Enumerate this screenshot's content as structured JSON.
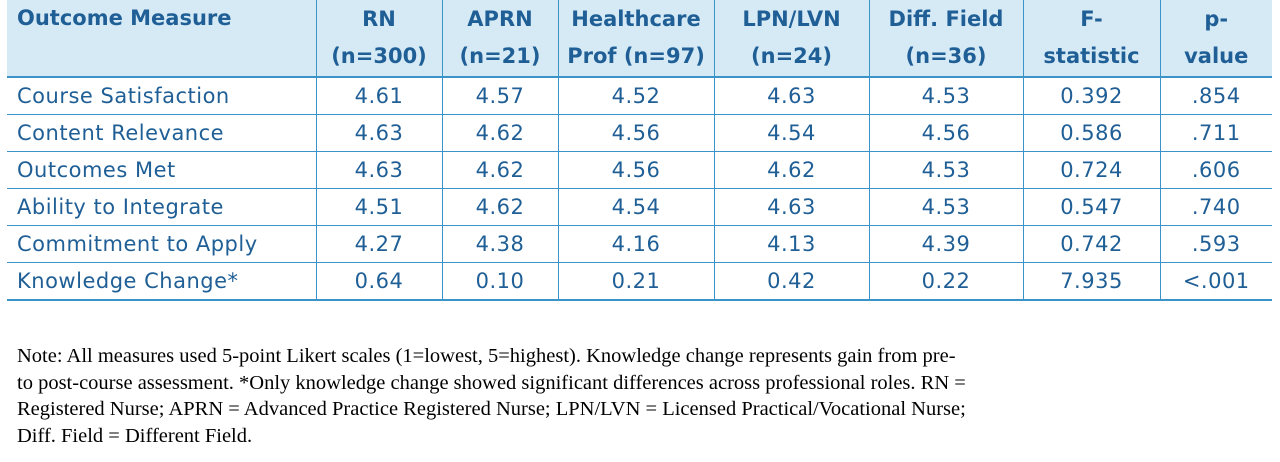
{
  "table": {
    "headers": [
      [
        "Outcome Measure"
      ],
      [
        "RN",
        "(n=300)"
      ],
      [
        "APRN",
        "(n=21)"
      ],
      [
        "Healthcare",
        "Prof (n=97)"
      ],
      [
        "LPN/LVN",
        "(n=24)"
      ],
      [
        "Diff. Field",
        "(n=36)"
      ],
      [
        "F-",
        "statistic"
      ],
      [
        "p-",
        "value"
      ]
    ],
    "rows": [
      [
        "Course Satisfaction",
        "4.61",
        "4.57",
        "4.52",
        "4.63",
        "4.53",
        "0.392",
        ".854"
      ],
      [
        "Content Relevance",
        "4.63",
        "4.62",
        "4.56",
        "4.54",
        "4.56",
        "0.586",
        ".711"
      ],
      [
        "Outcomes Met",
        "4.63",
        "4.62",
        "4.56",
        "4.62",
        "4.53",
        "0.724",
        ".606"
      ],
      [
        "Ability to Integrate",
        "4.51",
        "4.62",
        "4.54",
        "4.63",
        "4.53",
        "0.547",
        ".740"
      ],
      [
        "Commitment to Apply",
        "4.27",
        "4.38",
        "4.16",
        "4.13",
        "4.39",
        "0.742",
        ".593"
      ],
      [
        "Knowledge Change*",
        "0.64",
        "0.10",
        "0.21",
        "0.42",
        "0.22",
        "7.935",
        "<.001"
      ]
    ]
  },
  "note": {
    "lines": [
      "Note: All measures used 5-point Likert scales (1=lowest, 5=highest). Knowledge change represents gain from pre-",
      "to post-course assessment. *Only knowledge change showed significant differences across professional roles. RN =",
      "Registered Nurse; APRN = Advanced Practice Registered Nurse; LPN/LVN = Licensed Practical/Vocational Nurse;",
      "Diff. Field = Different Field."
    ]
  },
  "colors": {
    "header_background": "#d6eaf6",
    "table_text": "#1f5f96",
    "border": "#3a93c9",
    "note_text": "#000000"
  }
}
